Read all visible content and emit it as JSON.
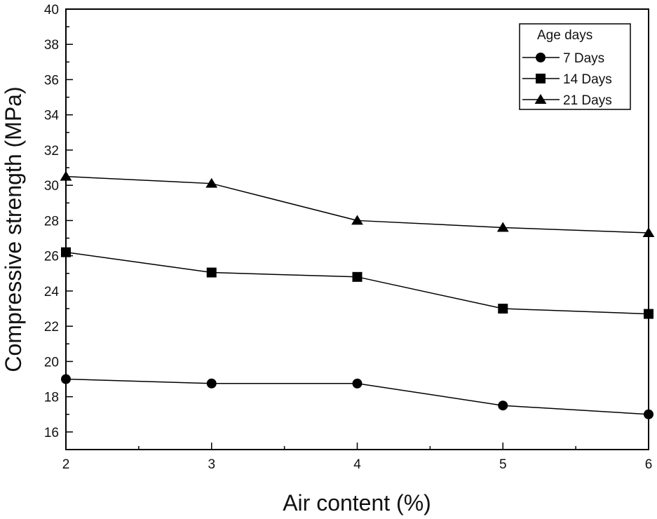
{
  "chart_data": {
    "type": "line",
    "xlabel": "Air content (%)",
    "ylabel": "Compressive strength (MPa)",
    "xlim": [
      2,
      6
    ],
    "ylim": [
      15,
      40
    ],
    "x_ticks": [
      2,
      3,
      4,
      5,
      6
    ],
    "y_ticks": [
      16,
      18,
      20,
      22,
      24,
      26,
      28,
      30,
      32,
      34,
      36,
      38,
      40
    ],
    "grid": false,
    "legend": {
      "title": "Age days",
      "position": "top-right"
    },
    "x": [
      2,
      3,
      4,
      5,
      6
    ],
    "series": [
      {
        "name": "7 Days",
        "marker": "circle",
        "color": "#000000",
        "values": [
          19.0,
          18.75,
          18.75,
          17.5,
          17.0
        ]
      },
      {
        "name": "14 Days",
        "marker": "square",
        "color": "#000000",
        "values": [
          26.2,
          25.05,
          24.8,
          23.0,
          22.7
        ]
      },
      {
        "name": "21 Days",
        "marker": "triangle",
        "color": "#000000",
        "values": [
          30.5,
          30.1,
          28.0,
          27.6,
          27.3
        ]
      }
    ]
  }
}
